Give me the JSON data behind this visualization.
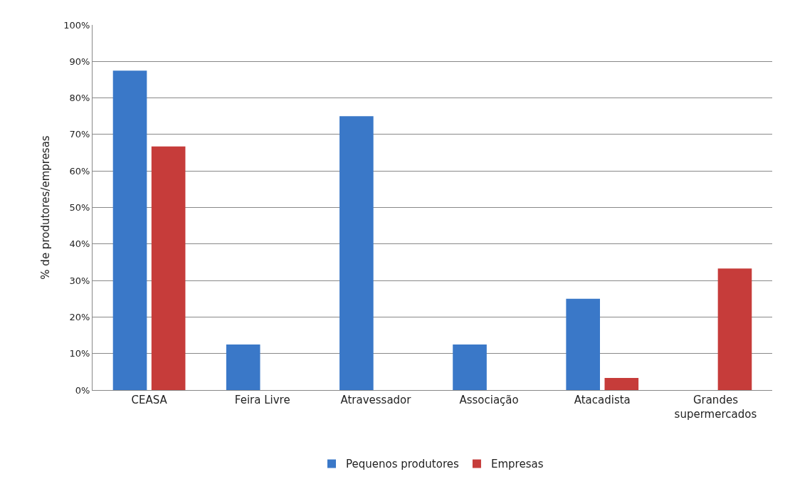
{
  "chart_data": {
    "type": "bar",
    "ylabel": "% de produtores/empresas",
    "categories": [
      "CEASA",
      "Feira Livre",
      "Atravessador",
      "Associação",
      "Atacadista",
      "Grandes supermercados"
    ],
    "series": [
      {
        "name": "Pequenos produtores",
        "color": "#3a78c8",
        "values": [
          87.5,
          12.5,
          75,
          12.5,
          25,
          null
        ]
      },
      {
        "name": "Empresas",
        "color": "#c63c3a",
        "values": [
          66.7,
          null,
          null,
          null,
          3.3,
          33.3
        ]
      }
    ],
    "ylim": [
      0,
      100
    ],
    "yticks": [
      {
        "value": 0,
        "label": "0%"
      },
      {
        "value": 10,
        "label": "10%"
      },
      {
        "value": 20,
        "label": "20%"
      },
      {
        "value": 30,
        "label": "30%"
      },
      {
        "value": 40,
        "label": "40%"
      },
      {
        "value": 50,
        "label": "50%"
      },
      {
        "value": 60,
        "label": "60%"
      },
      {
        "value": 70,
        "label": "70%"
      },
      {
        "value": 80,
        "label": "80%"
      },
      {
        "value": 90,
        "label": "90%"
      },
      {
        "value": 100,
        "label": "100%"
      }
    ],
    "grid": "y",
    "legend": "bottom"
  }
}
